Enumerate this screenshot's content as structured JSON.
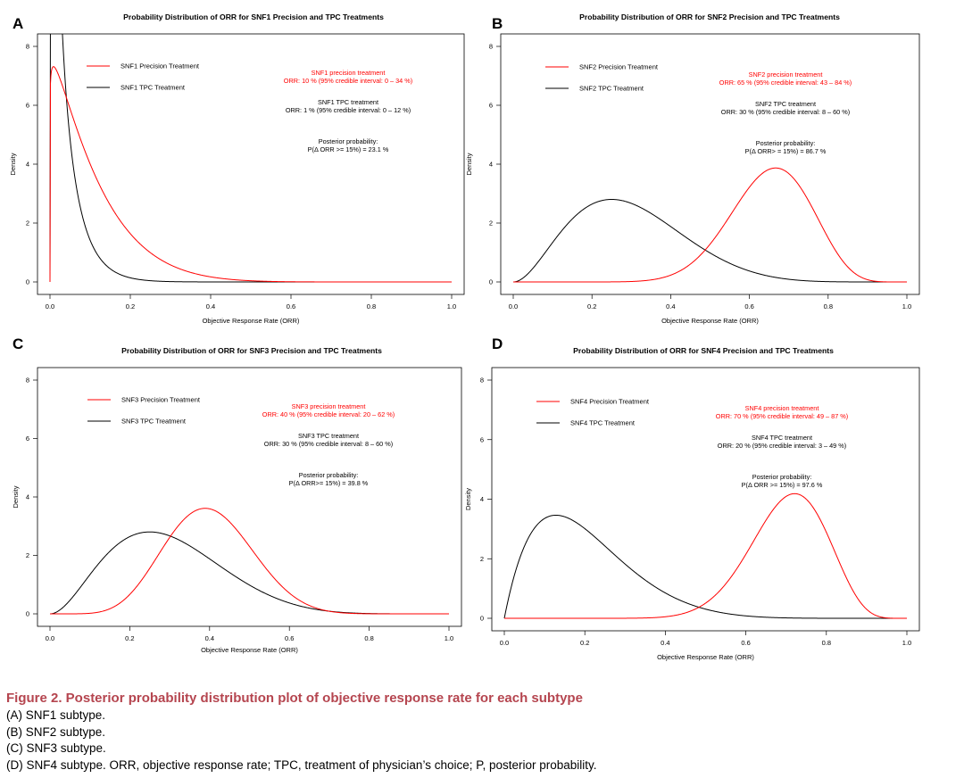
{
  "chart_data": [
    {
      "panel": "A",
      "type": "line",
      "title": "Probability Distribution of ORR for SNF1 Precision and TPC Treatments",
      "xlabel": "Objective Response Rate (ORR)",
      "ylabel": "Density",
      "xlim": [
        0,
        1
      ],
      "ylim": [
        0,
        8
      ],
      "xticks": [
        "0.0",
        "0.2",
        "0.4",
        "0.6",
        "0.8",
        "1.0"
      ],
      "yticks": [
        "0",
        "2",
        "4",
        "6",
        "8"
      ],
      "legend": [
        "SNF1 Precision Treatment",
        "SNF1 TPC Treatment"
      ],
      "series": [
        {
          "name": "SNF1 Precision Treatment",
          "color": "#ff0000",
          "dist": "beta",
          "alpha": 1.07,
          "beta": 9.0
        },
        {
          "name": "SNF1 TPC Treatment",
          "color": "#000000",
          "dist": "beta",
          "alpha": 0.55,
          "beta": 18.0
        }
      ],
      "annotation": {
        "precision_title": "SNF1 precision treatment",
        "precision_orr": "ORR: 10 % (95% credible interval: 0 – 34 %)",
        "tpc_title": "SNF1 TPC treatment",
        "tpc_orr": "ORR: 1 % (95% credible interval: 0 – 12 %)",
        "post_title": "Posterior probability:",
        "post_value": "P(Δ ORR >= 15%) =  23.1 %"
      }
    },
    {
      "panel": "B",
      "type": "line",
      "title": "Probability Distribution of ORR for SNF2 Precision and TPC Treatments",
      "xlabel": "Objective Response Rate (ORR)",
      "ylabel": "Density",
      "xlim": [
        0,
        1
      ],
      "ylim": [
        0,
        8
      ],
      "xticks": [
        "0.0",
        "0.2",
        "0.4",
        "0.6",
        "0.8",
        "1.0"
      ],
      "yticks": [
        "0",
        "2",
        "4",
        "6",
        "8"
      ],
      "legend": [
        "SNF2 Precision Treatment",
        "SNF2 TPC Treatment"
      ],
      "series": [
        {
          "name": "SNF2 Precision Treatment",
          "color": "#ff0000",
          "dist": "beta",
          "alpha": 14,
          "beta": 7.5
        },
        {
          "name": "SNF2 TPC Treatment",
          "color": "#000000",
          "dist": "beta",
          "alpha": 3,
          "beta": 7
        }
      ],
      "annotation": {
        "precision_title": "SNF2 precision treatment",
        "precision_orr": "ORR: 65 % (95% credible interval: 43 – 84 %)",
        "tpc_title": "SNF2 TPC treatment",
        "tpc_orr": "ORR: 30 % (95% credible interval: 8 – 60 %)",
        "post_title": "Posterior probability:",
        "post_value": "P(Δ ORR> = 15%) =  86.7 %"
      }
    },
    {
      "panel": "C",
      "type": "line",
      "title": "Probability Distribution of ORR for SNF3 Precision and TPC Treatments",
      "xlabel": "Objective Response Rate (ORR)",
      "ylabel": "Density",
      "xlim": [
        0,
        1
      ],
      "ylim": [
        0,
        8
      ],
      "xticks": [
        "0.0",
        "0.2",
        "0.4",
        "0.6",
        "0.8",
        "1.0"
      ],
      "yticks": [
        "0",
        "2",
        "4",
        "6",
        "8"
      ],
      "legend": [
        "SNF3 Precision Treatment",
        "SNF3 TPC Treatment"
      ],
      "series": [
        {
          "name": "SNF3 Precision Treatment",
          "color": "#ff0000",
          "dist": "beta",
          "alpha": 8,
          "beta": 12
        },
        {
          "name": "SNF3 TPC Treatment",
          "color": "#000000",
          "dist": "beta",
          "alpha": 3,
          "beta": 7
        }
      ],
      "annotation": {
        "precision_title": "SNF3 precision treatment",
        "precision_orr": "ORR: 40 % (95% credible interval: 20 – 62 %)",
        "tpc_title": "SNF3 TPC treatment",
        "tpc_orr": "ORR: 30 % (95% credible interval: 8 – 60 %)",
        "post_title": "Posterior probability:",
        "post_value": "P(Δ ORR>= 15%) =  39.8 %"
      }
    },
    {
      "panel": "D",
      "type": "line",
      "title": "Probability Distribution of ORR for SNF4 Precision and TPC Treatments",
      "xlabel": "Objective Response Rate (ORR)",
      "ylabel": "Density",
      "xlim": [
        0,
        1
      ],
      "ylim": [
        0,
        8
      ],
      "xticks": [
        "0.0",
        "0.2",
        "0.4",
        "0.6",
        "0.8",
        "1.0"
      ],
      "yticks": [
        "0",
        "2",
        "4",
        "6",
        "8"
      ],
      "legend": [
        "SNF4 Precision Treatment",
        "SNF4 TPC Treatment"
      ],
      "series": [
        {
          "name": "SNF4 Precision Treatment",
          "color": "#ff0000",
          "dist": "beta",
          "alpha": 16,
          "beta": 6.8
        },
        {
          "name": "SNF4 TPC Treatment",
          "color": "#000000",
          "dist": "beta",
          "alpha": 2,
          "beta": 7.8
        }
      ],
      "annotation": {
        "precision_title": "SNF4 precision treatment",
        "precision_orr": "ORR: 70 % (95% credible interval: 49 – 87 %)",
        "tpc_title": "SNF4 TPC treatment",
        "tpc_orr": "ORR: 20 % (95% credible interval: 3 – 49 %)",
        "post_title": "Posterior probability:",
        "post_value": "P(Δ ORR >= 15%) =  97.6 %"
      }
    }
  ],
  "caption": {
    "title": "Figure 2.  Posterior probability distribution plot of objective response rate for each subtype",
    "lines": [
      "(A) SNF1 subtype.",
      "(B) SNF2 subtype.",
      "(C) SNF3 subtype.",
      "(D) SNF4 subtype. ORR, objective response rate; TPC, treatment of physician’s choice; P, posterior probability."
    ]
  }
}
